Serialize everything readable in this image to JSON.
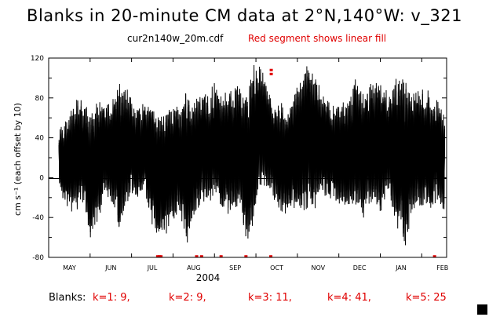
{
  "chart_data": {
    "type": "line",
    "title": "Blanks in 20-minute CM data at 2°N,140°W: v_321",
    "subtitle": "cur2n140w_20m.cdf",
    "annotation": "Red segment shows linear fill",
    "ylabel": "cm s⁻¹ (each offset by 10)",
    "xlabel": "2004",
    "ylim": [
      -80,
      120
    ],
    "yticks": [
      -80,
      -40,
      0,
      40,
      80,
      120
    ],
    "xlim": [
      0,
      9.6
    ],
    "months": [
      "MAY",
      "JUN",
      "JUL",
      "AUG",
      "SEP",
      "OCT",
      "NOV",
      "DEC",
      "JAN",
      "FEB"
    ],
    "series_color": "#000000",
    "fill_color": "#e00000",
    "envelope": {
      "t": [
        0.25,
        0.35,
        0.5,
        0.7,
        0.85,
        1.0,
        1.2,
        1.35,
        1.5,
        1.7,
        1.9,
        2.1,
        2.3,
        2.5,
        2.7,
        2.95,
        3.15,
        3.35,
        3.5,
        3.7,
        3.85,
        4.0,
        4.2,
        4.4,
        4.6,
        4.8,
        4.95,
        5.1,
        5.25,
        5.4,
        5.6,
        5.8,
        6.0,
        6.2,
        6.4,
        6.6,
        6.8,
        7.0,
        7.2,
        7.4,
        7.6,
        7.8,
        8.0,
        8.2,
        8.4,
        8.6,
        8.8,
        9.0,
        9.2,
        9.4,
        9.55
      ],
      "upper": [
        45,
        52,
        60,
        78,
        72,
        60,
        75,
        70,
        70,
        95,
        88,
        68,
        72,
        72,
        58,
        72,
        66,
        88,
        78,
        88,
        80,
        92,
        78,
        92,
        92,
        78,
        112,
        112,
        92,
        74,
        72,
        72,
        92,
        112,
        105,
        84,
        72,
        72,
        72,
        95,
        80,
        95,
        96,
        80,
        98,
        98,
        82,
        88,
        82,
        72,
        65
      ],
      "lower": [
        -8,
        -20,
        -32,
        -28,
        -22,
        -62,
        -40,
        -15,
        -18,
        -52,
        -22,
        -20,
        -8,
        -45,
        -58,
        -48,
        -30,
        -70,
        -38,
        -20,
        -24,
        -18,
        -28,
        -36,
        -32,
        -62,
        -42,
        -5,
        -10,
        -18,
        -38,
        -32,
        -28,
        -30,
        -28,
        -18,
        -20,
        -22,
        -30,
        -28,
        -38,
        -22,
        -32,
        -10,
        -50,
        -68,
        -30,
        -25,
        -32,
        -20,
        -35
      ]
    },
    "fill_segments": [
      {
        "t": 2.62,
        "y": -79
      },
      {
        "t": 2.66,
        "y": -79
      },
      {
        "t": 2.7,
        "y": -79
      },
      {
        "t": 3.56,
        "y": -79
      },
      {
        "t": 3.68,
        "y": -79
      },
      {
        "t": 4.15,
        "y": -79
      },
      {
        "t": 4.75,
        "y": -79
      },
      {
        "t": 5.35,
        "y": -79
      },
      {
        "t": 9.3,
        "y": -79
      },
      {
        "t": 5.36,
        "y": 108
      },
      {
        "t": 5.36,
        "y": 104
      }
    ]
  },
  "blanks": {
    "label": "Blanks:",
    "items": [
      "k=1: 9,",
      "k=2: 9,",
      "k=3: 11,",
      "k=4: 41,",
      "k=5: 25"
    ]
  }
}
